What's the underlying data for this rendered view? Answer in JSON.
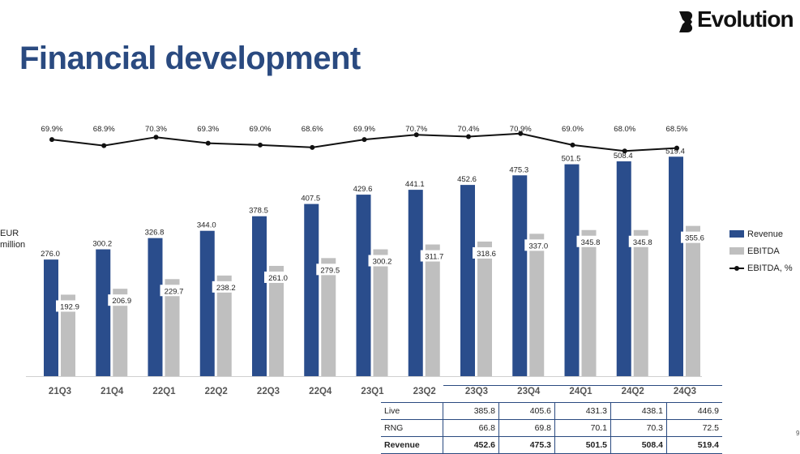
{
  "logo": {
    "text": "Evolution"
  },
  "title": "Financial development",
  "unit_label": [
    "EUR",
    "million"
  ],
  "legend": {
    "revenue": "Revenue",
    "ebitda": "EBITDA",
    "margin": "EBITDA, %"
  },
  "colors": {
    "revenue": "#2a4d8c",
    "ebitda": "#bfbfbf",
    "margin": "#111111",
    "title": "#2a4a80"
  },
  "chart_data": {
    "type": "bar",
    "categories": [
      "21Q3",
      "21Q4",
      "22Q1",
      "22Q2",
      "22Q3",
      "22Q4",
      "23Q1",
      "23Q2",
      "23Q3",
      "23Q4",
      "24Q1",
      "24Q2",
      "24Q3"
    ],
    "series": [
      {
        "name": "Revenue",
        "type": "bar",
        "values": [
          276.0,
          300.2,
          326.8,
          344.0,
          378.5,
          407.5,
          429.6,
          441.1,
          452.6,
          475.3,
          501.5,
          508.4,
          519.4
        ]
      },
      {
        "name": "EBITDA",
        "type": "bar",
        "values": [
          192.9,
          206.9,
          229.7,
          238.2,
          261.0,
          279.5,
          300.2,
          311.7,
          318.6,
          337.0,
          345.8,
          345.8,
          355.6
        ]
      },
      {
        "name": "EBITDA, %",
        "type": "line",
        "values": [
          69.9,
          68.9,
          70.3,
          69.3,
          69.0,
          68.6,
          69.9,
          70.7,
          70.4,
          70.9,
          69.0,
          68.0,
          68.5
        ]
      }
    ],
    "ylabel": "EUR million",
    "ylim": [
      0,
      560
    ],
    "grid": false,
    "legend_position": "right"
  },
  "table": {
    "headers": [
      "23Q3",
      "23Q4",
      "24Q1",
      "24Q2",
      "24Q3"
    ],
    "rows": [
      {
        "label": "Live",
        "values": [
          "385.8",
          "405.6",
          "431.3",
          "438.1",
          "446.9"
        ],
        "bold": false
      },
      {
        "label": "RNG",
        "values": [
          "66.8",
          "69.8",
          "70.1",
          "70.3",
          "72.5"
        ],
        "bold": false
      },
      {
        "label": "Revenue",
        "values": [
          "452.6",
          "475.3",
          "501.5",
          "508.4",
          "519.4"
        ],
        "bold": true
      }
    ]
  },
  "page_number": "9"
}
